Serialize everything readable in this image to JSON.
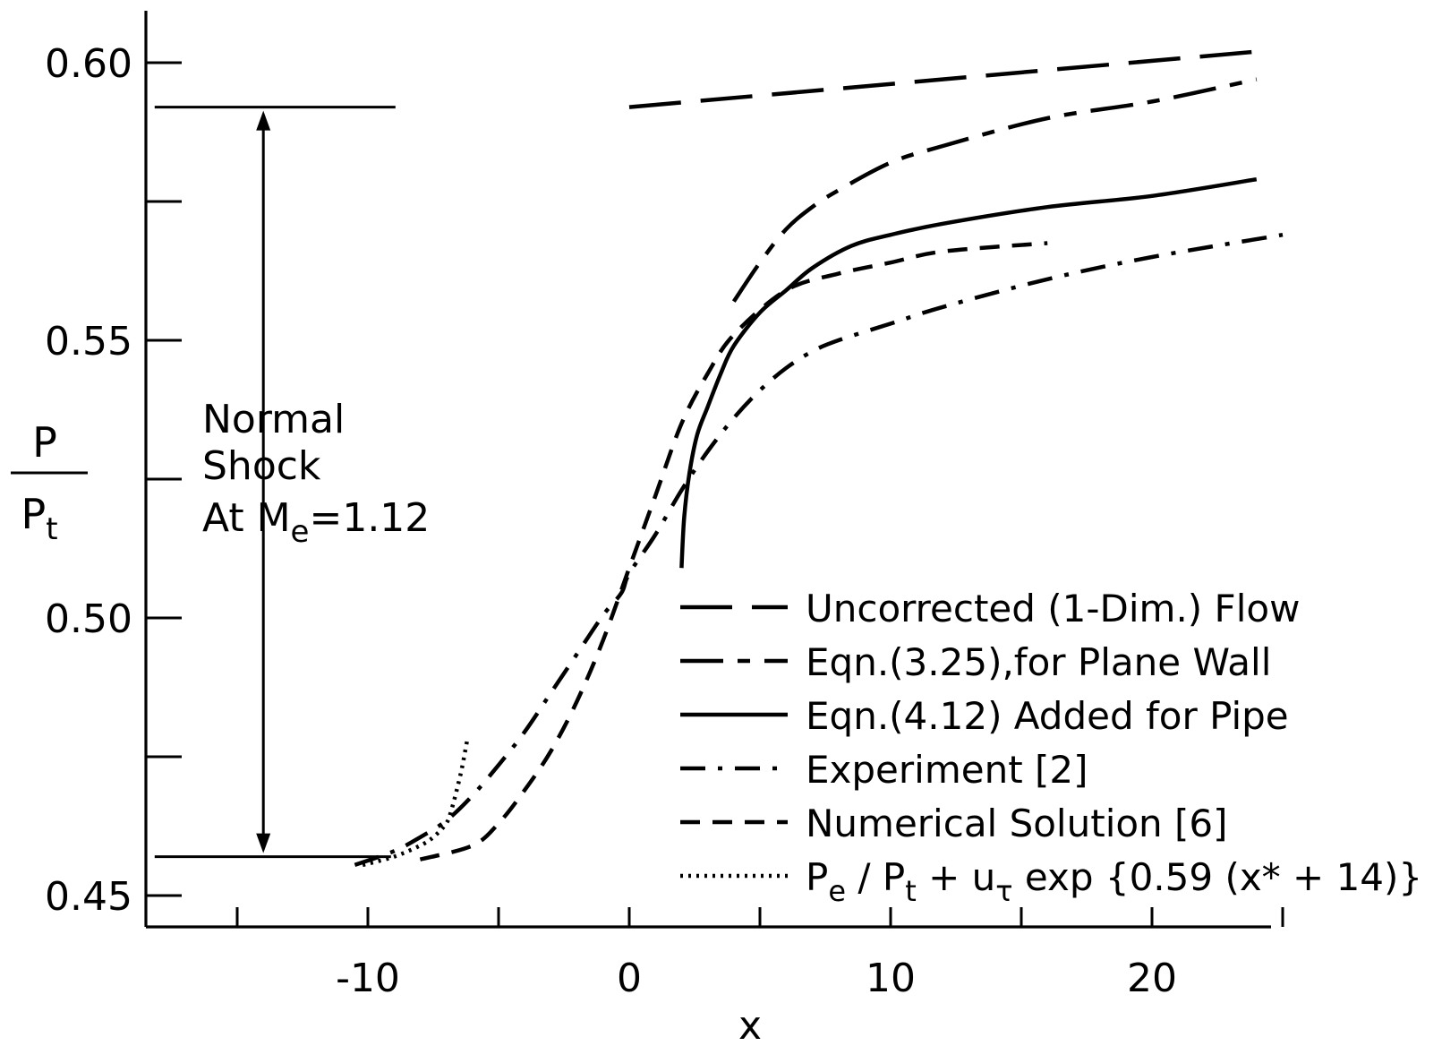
{
  "chart_data": {
    "type": "line",
    "xlabel": "x",
    "ylabel": {
      "numerator": "P",
      "denominator": "P",
      "denominator_subscript": "t"
    },
    "xlim": [
      -18.5,
      26
    ],
    "ylim": [
      0.44,
      0.61
    ],
    "x_ticks": [
      -15,
      -10,
      -5,
      0,
      5,
      10,
      15,
      20,
      25
    ],
    "x_tick_labels": [
      {
        "value": -10,
        "label": "-10"
      },
      {
        "value": 0,
        "label": "0"
      },
      {
        "value": 10,
        "label": "10"
      },
      {
        "value": 20,
        "label": "20"
      }
    ],
    "y_ticks": [
      0.45,
      0.475,
      0.5,
      0.525,
      0.55,
      0.575,
      0.6
    ],
    "y_tick_labels": [
      {
        "value": 0.45,
        "label": "0.45"
      },
      {
        "value": 0.5,
        "label": "0.50"
      },
      {
        "value": 0.55,
        "label": "0.55"
      },
      {
        "value": 0.6,
        "label": "0.60"
      }
    ],
    "grid": false,
    "legend_position": "bottom-right",
    "annotation": {
      "lines": [
        "Normal",
        "Shock",
        "At M"
      ],
      "subscript": "e",
      "suffix": "=1.12",
      "y_low": 0.457,
      "y_high": 0.592,
      "x_position": -14,
      "x_extent": [
        -18.5,
        -11
      ]
    },
    "series": [
      {
        "name": "Uncorrected (1-Dim.) Flow",
        "style": "long-dash",
        "x": [
          0,
          24
        ],
        "y": [
          0.592,
          0.602
        ]
      },
      {
        "name": "Eqn.(3.25),for Plane Wall",
        "style": "dash-long-dash",
        "x": [
          4,
          5,
          6,
          7,
          8,
          10,
          12,
          16,
          20,
          24
        ],
        "y": [
          0.557,
          0.564,
          0.57,
          0.574,
          0.577,
          0.582,
          0.585,
          0.59,
          0.593,
          0.597
        ]
      },
      {
        "name": "Eqn.(4.12) Added for Pipe",
        "style": "solid",
        "x": [
          2,
          2.1,
          2.3,
          2.6,
          3,
          3.5,
          4,
          5,
          6,
          7,
          8.5,
          10,
          12,
          16,
          20,
          24
        ],
        "y": [
          0.509,
          0.518,
          0.526,
          0.533,
          0.538,
          0.544,
          0.549,
          0.555,
          0.559,
          0.563,
          0.567,
          0.569,
          0.571,
          0.574,
          0.576,
          0.579
        ]
      },
      {
        "name": "Experiment [2]",
        "style": "dash-dot",
        "x": [
          -10.5,
          -9,
          -8,
          -7,
          -6,
          -5,
          -4,
          -3,
          -2,
          -1,
          -0.3,
          0,
          1,
          2,
          3,
          4,
          5,
          6,
          7,
          8,
          10,
          12,
          16,
          20,
          25
        ],
        "y": [
          0.4555,
          0.458,
          0.4605,
          0.4635,
          0.468,
          0.4735,
          0.4795,
          0.4865,
          0.4935,
          0.5005,
          0.5045,
          0.508,
          0.515,
          0.523,
          0.53,
          0.536,
          0.541,
          0.545,
          0.548,
          0.55,
          0.553,
          0.556,
          0.561,
          0.565,
          0.569
        ]
      },
      {
        "name": "Numerical Solution [6]",
        "style": "short-dash",
        "x": [
          -8,
          -6,
          -5,
          -4,
          -3,
          -2,
          -1,
          0,
          1,
          2,
          3,
          4,
          6,
          8,
          10,
          12,
          16
        ],
        "y": [
          0.4565,
          0.459,
          0.463,
          0.469,
          0.476,
          0.485,
          0.496,
          0.509,
          0.522,
          0.535,
          0.544,
          0.551,
          0.559,
          0.562,
          0.564,
          0.566,
          0.5675
        ]
      },
      {
        "name": "Pe/Pt + uτ exp {0.59 (x*+14)}",
        "style": "dotted",
        "x": [
          -10.2,
          -9,
          -8,
          -7.5,
          -7,
          -6.8,
          -6.6,
          -6.4,
          -6.2
        ],
        "y": [
          0.4555,
          0.457,
          0.459,
          0.4605,
          0.463,
          0.4655,
          0.469,
          0.473,
          0.478
        ]
      }
    ],
    "legend": [
      {
        "label": "Uncorrected (1-Dim.) Flow"
      },
      {
        "label": "Eqn.(3.25),for Plane Wall"
      },
      {
        "label": "Eqn.(4.12)  Added for Pipe"
      },
      {
        "label": "Experiment [2]"
      },
      {
        "label": "Numerical  Solution [6]"
      },
      {
        "label_parts": [
          "P",
          "e",
          " / P",
          "t",
          " + u",
          "τ",
          "  exp  {0.59 (x* + 14)}"
        ]
      }
    ]
  }
}
